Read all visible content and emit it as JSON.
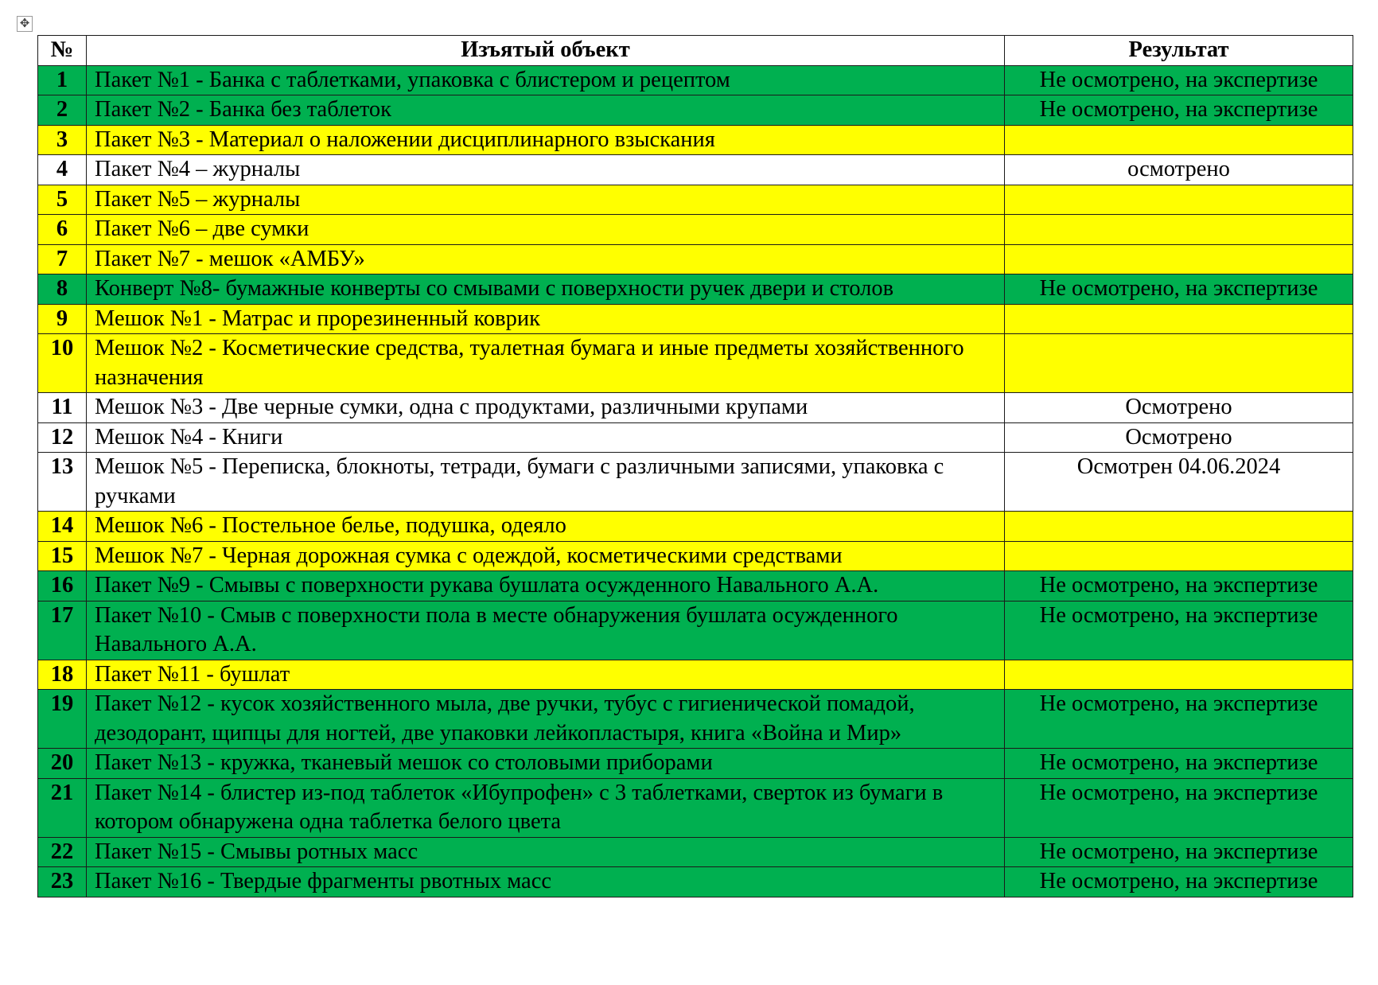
{
  "colors": {
    "green": "#00B050",
    "yellow": "#FFFF00",
    "white": "#FFFFFF"
  },
  "table": {
    "headers": [
      "№",
      "Изъятый объект",
      "Результат"
    ],
    "rows": [
      {
        "num": "1",
        "object": "Пакет №1 - Банка с таблетками, упаковка с блистером и рецептом",
        "result": "Не осмотрено, на экспертизе",
        "color": "green"
      },
      {
        "num": "2",
        "object": "Пакет №2 - Банка без таблеток",
        "result": "Не осмотрено, на экспертизе",
        "color": "green"
      },
      {
        "num": "3",
        "object": "Пакет №3 - Материал о наложении дисциплинарного взыскания",
        "result": "",
        "color": "yellow"
      },
      {
        "num": "4",
        "object": "Пакет №4 – журналы",
        "result": "осмотрено",
        "color": "white"
      },
      {
        "num": "5",
        "object": "Пакет №5 – журналы",
        "result": "",
        "color": "yellow"
      },
      {
        "num": "6",
        "object": "Пакет №6 – две сумки",
        "result": "",
        "color": "yellow"
      },
      {
        "num": "7",
        "object": "Пакет №7 - мешок «АМБУ»",
        "result": "",
        "color": "yellow"
      },
      {
        "num": "8",
        "object": "Конверт №8- бумажные конверты со смывами с поверхности ручек двери и столов",
        "result": "Не осмотрено, на экспертизе",
        "color": "green"
      },
      {
        "num": "9",
        "object": "Мешок №1 - Матрас и прорезиненный коврик",
        "result": "",
        "color": "yellow"
      },
      {
        "num": "10",
        "object": "Мешок №2 - Косметические средства, туалетная бумага и иные предметы хозяйственного назначения",
        "result": "",
        "color": "yellow"
      },
      {
        "num": "11",
        "object": "Мешок №3 - Две черные сумки, одна с продуктами, различными крупами",
        "result": "Осмотрено",
        "color": "white"
      },
      {
        "num": "12",
        "object": "Мешок №4 - Книги",
        "result": "Осмотрено",
        "color": "white"
      },
      {
        "num": "13",
        "object": "Мешок №5 - Переписка, блокноты, тетради, бумаги с различными записями, упаковка с ручками",
        "result": "Осмотрен 04.06.2024",
        "color": "white"
      },
      {
        "num": "14",
        "object": "Мешок №6 - Постельное белье, подушка, одеяло",
        "result": "",
        "color": "yellow"
      },
      {
        "num": "15",
        "object": "Мешок №7 - Черная дорожная сумка с одеждой, косметическими средствами",
        "result": "",
        "color": "yellow"
      },
      {
        "num": "16",
        "object": "Пакет №9 - Смывы с поверхности рукава бушлата осужденного Навального А.А.",
        "result": "Не осмотрено, на экспертизе",
        "color": "green"
      },
      {
        "num": "17",
        "object": "Пакет №10 - Смыв с поверхности пола в месте обнаружения бушлата осужденного Навального А.А.",
        "result": "Не осмотрено, на экспертизе",
        "color": "green"
      },
      {
        "num": "18",
        "object": "Пакет №11 - бушлат",
        "result": "",
        "color": "yellow"
      },
      {
        "num": "19",
        "object": "Пакет №12 - кусок хозяйственного мыла, две ручки, тубус с гигиенической помадой, дезодорант, щипцы для ногтей, две упаковки лейкопластыря, книга «Война и Мир»",
        "result": "Не осмотрено, на экспертизе",
        "color": "green"
      },
      {
        "num": "20",
        "object": "Пакет №13 - кружка, тканевый мешок со столовыми приборами",
        "result": "Не осмотрено, на экспертизе",
        "color": "green"
      },
      {
        "num": "21",
        "object": "Пакет №14 - блистер из-под таблеток «Ибупрофен» с 3 таблетками, сверток из бумаги в котором обнаружена одна таблетка белого цвета",
        "result": "Не осмотрено, на экспертизе",
        "color": "green"
      },
      {
        "num": "22",
        "object": "Пакет №15 - Смывы ротных масс",
        "result": "Не осмотрено, на экспертизе",
        "color": "green"
      },
      {
        "num": "23",
        "object": "Пакет №16 - Твердые фрагменты рвотных масс",
        "result": "Не осмотрено, на экспертизе",
        "color": "green"
      }
    ]
  }
}
